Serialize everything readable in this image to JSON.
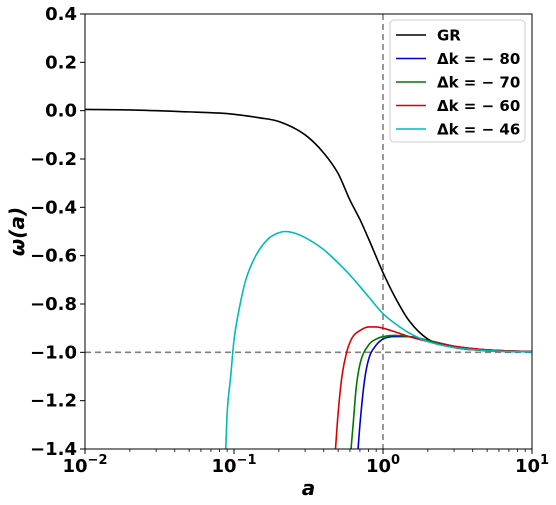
{
  "chart_data": {
    "type": "line",
    "xscale": "log",
    "xlim": [
      0.01,
      10
    ],
    "ylim": [
      -1.4,
      0.4
    ],
    "xlabel": "a",
    "ylabel": "ω(a)",
    "x_ticks": [
      {
        "value": 0.01,
        "base": "10",
        "exp": "−2"
      },
      {
        "value": 0.1,
        "base": "10",
        "exp": "−1"
      },
      {
        "value": 1,
        "base": "10",
        "exp": "0"
      },
      {
        "value": 10,
        "base": "10",
        "exp": "1"
      }
    ],
    "y_ticks": [
      {
        "value": 0.4,
        "label": "0.4"
      },
      {
        "value": 0.2,
        "label": "0.2"
      },
      {
        "value": 0.0,
        "label": "0.0"
      },
      {
        "value": -0.2,
        "label": "−0.2"
      },
      {
        "value": -0.4,
        "label": "−0.4"
      },
      {
        "value": -0.6,
        "label": "−0.6"
      },
      {
        "value": -0.8,
        "label": "−0.8"
      },
      {
        "value": -1.0,
        "label": "−1.0"
      },
      {
        "value": -1.2,
        "label": "−1.2"
      },
      {
        "value": -1.4,
        "label": "−1.4"
      }
    ],
    "reference_lines": [
      {
        "orientation": "vertical",
        "value": 1,
        "color": "#808080",
        "style": "dashed"
      },
      {
        "orientation": "horizontal",
        "value": -1.0,
        "color": "#808080",
        "style": "dashed"
      }
    ],
    "legend": {
      "position": "top-right"
    },
    "series": [
      {
        "name": "GR",
        "color": "#000000",
        "points": [
          [
            0.01,
            0.005
          ],
          [
            0.02,
            0.003
          ],
          [
            0.05,
            -0.005
          ],
          [
            0.08,
            -0.01
          ],
          [
            0.1,
            -0.015
          ],
          [
            0.15,
            -0.03
          ],
          [
            0.2,
            -0.045
          ],
          [
            0.3,
            -0.1
          ],
          [
            0.4,
            -0.175
          ],
          [
            0.5,
            -0.26
          ],
          [
            0.6,
            -0.37
          ],
          [
            0.7,
            -0.45
          ],
          [
            0.8,
            -0.53
          ],
          [
            1.0,
            -0.67
          ],
          [
            1.2,
            -0.77
          ],
          [
            1.5,
            -0.87
          ],
          [
            2.0,
            -0.945
          ],
          [
            3.0,
            -0.98
          ],
          [
            5.0,
            -0.993
          ],
          [
            10.0,
            -0.998
          ]
        ]
      },
      {
        "name": "Δk = − 80",
        "color": "#0000cc",
        "points": [
          [
            0.68,
            -1.4
          ],
          [
            0.7,
            -1.3
          ],
          [
            0.75,
            -1.12
          ],
          [
            0.8,
            -1.03
          ],
          [
            0.9,
            -0.97
          ],
          [
            1.0,
            -0.945
          ],
          [
            1.2,
            -0.935
          ],
          [
            1.5,
            -0.935
          ],
          [
            2.0,
            -0.95
          ],
          [
            3.0,
            -0.975
          ],
          [
            5.0,
            -0.99
          ],
          [
            10.0,
            -0.997
          ]
        ]
      },
      {
        "name": "Δk = − 70",
        "color": "#007700",
        "points": [
          [
            0.61,
            -1.4
          ],
          [
            0.63,
            -1.3
          ],
          [
            0.66,
            -1.15
          ],
          [
            0.7,
            -1.05
          ],
          [
            0.8,
            -0.97
          ],
          [
            0.9,
            -0.945
          ],
          [
            1.0,
            -0.935
          ],
          [
            1.2,
            -0.93
          ],
          [
            1.5,
            -0.935
          ],
          [
            2.0,
            -0.95
          ],
          [
            3.0,
            -0.975
          ],
          [
            5.0,
            -0.99
          ],
          [
            10.0,
            -0.997
          ]
        ]
      },
      {
        "name": "Δk = − 60",
        "color": "#dd0000",
        "points": [
          [
            0.48,
            -1.4
          ],
          [
            0.5,
            -1.25
          ],
          [
            0.53,
            -1.1
          ],
          [
            0.57,
            -1.0
          ],
          [
            0.62,
            -0.94
          ],
          [
            0.7,
            -0.91
          ],
          [
            0.8,
            -0.895
          ],
          [
            0.9,
            -0.895
          ],
          [
            1.0,
            -0.9
          ],
          [
            1.2,
            -0.915
          ],
          [
            1.5,
            -0.935
          ],
          [
            2.0,
            -0.955
          ],
          [
            3.0,
            -0.975
          ],
          [
            5.0,
            -0.99
          ],
          [
            10.0,
            -0.997
          ]
        ]
      },
      {
        "name": "Δk = − 46",
        "color": "#00bbbb",
        "points": [
          [
            0.088,
            -1.4
          ],
          [
            0.09,
            -1.25
          ],
          [
            0.095,
            -1.1
          ],
          [
            0.1,
            -0.95
          ],
          [
            0.11,
            -0.8
          ],
          [
            0.12,
            -0.7
          ],
          [
            0.14,
            -0.6
          ],
          [
            0.17,
            -0.53
          ],
          [
            0.2,
            -0.505
          ],
          [
            0.22,
            -0.5
          ],
          [
            0.25,
            -0.505
          ],
          [
            0.3,
            -0.525
          ],
          [
            0.4,
            -0.575
          ],
          [
            0.5,
            -0.63
          ],
          [
            0.6,
            -0.68
          ],
          [
            0.8,
            -0.77
          ],
          [
            1.0,
            -0.84
          ],
          [
            1.2,
            -0.88
          ],
          [
            1.5,
            -0.92
          ],
          [
            2.0,
            -0.955
          ],
          [
            3.0,
            -0.98
          ],
          [
            5.0,
            -0.993
          ],
          [
            10.0,
            -0.998
          ]
        ]
      }
    ]
  }
}
